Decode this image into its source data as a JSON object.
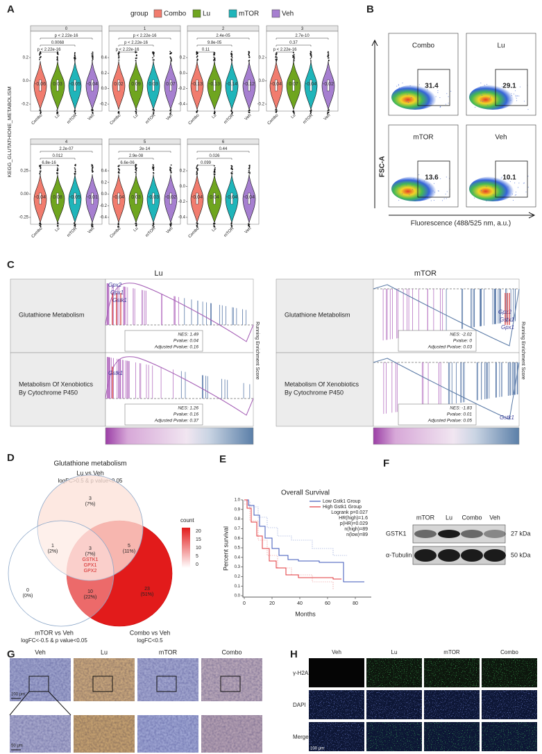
{
  "panels": {
    "A": {
      "label": "A",
      "legend_title": "group",
      "groups": [
        "Combo",
        "Lu",
        "mTOR",
        "Veh"
      ],
      "y_label": "KEGG_GLUTATHIONE_METABOLISM",
      "facets": [
        {
          "title": "0",
          "pvalues": [
            "p < 2.22e-16",
            "0.0068",
            "p < 2.22e-16"
          ],
          "medians": [
            "-0.06",
            "0.03",
            "-0.05",
            "-0.04"
          ],
          "yticks": [
            "0.2",
            "0.0",
            "-0.2"
          ]
        },
        {
          "title": "1",
          "pvalues": [
            "p < 2.22e-16",
            "p < 2.22e-16",
            "p < 2.22e-16"
          ],
          "medians": [
            "0.02",
            "0.09",
            "0.03",
            "0.07"
          ],
          "yticks": [
            "0.4",
            "0.2",
            "0.0",
            "-0.2"
          ]
        },
        {
          "title": "2",
          "pvalues": [
            "2.4e-05",
            "9.8e-05",
            "0.11"
          ],
          "medians": [
            "-0.13",
            "-0.13",
            "-0.14",
            "-0.12"
          ],
          "yticks": [
            "0.2",
            "0.0",
            "-0.2",
            "-0.4"
          ]
        },
        {
          "title": "3",
          "pvalues": [
            "2.7e-10",
            "0.37",
            "p < 2.22e-16"
          ],
          "medians": [
            "-0.04",
            "0.07",
            "-0.04",
            "-0.02"
          ],
          "yticks": [
            "0.2",
            "0.0",
            "-0.2"
          ]
        },
        {
          "title": "4",
          "pvalues": [
            "2.2e-07",
            "0.012",
            "6.8e-16"
          ],
          "medians": [
            "-0.04",
            "0.08",
            "-0.05",
            "-0.01"
          ],
          "yticks": [
            "0.25",
            "0.00",
            "-0.25"
          ]
        },
        {
          "title": "5",
          "pvalues": [
            "2e-14",
            "2.9e-08",
            "6.6e-06"
          ],
          "medians": [
            "-0.04",
            "0.03",
            "-0.03",
            "-0.02"
          ],
          "yticks": [
            "0.4",
            "0.2",
            "0.0",
            "-0.2",
            "-0.4"
          ]
        },
        {
          "title": "6",
          "pvalues": [
            "0.44",
            "0.026",
            "0.099"
          ],
          "medians": [
            "-0.04",
            "0.04",
            "-0.04",
            "-0.04"
          ],
          "yticks": [
            "0.2",
            "0.0",
            "-0.2",
            "-0.4"
          ]
        }
      ]
    },
    "B": {
      "label": "B",
      "samples": [
        {
          "name": "Combo",
          "value": "31.4"
        },
        {
          "name": "Lu",
          "value": "29.1"
        },
        {
          "name": "mTOR",
          "value": "13.6"
        },
        {
          "name": "Veh",
          "value": "10.1"
        }
      ],
      "y_label": "FSC-A",
      "x_label": "Fluorescence (488/525 nm, a.u.)"
    },
    "C": {
      "label": "C",
      "y_label": "Running Enrichment Score",
      "sides": [
        {
          "title": "Lu",
          "pathways": [
            {
              "name": [
                "Glutathione Metabolism"
              ],
              "genes": [
                "Gpx2",
                "Gpx1",
                "Gstk1"
              ],
              "stats": [
                "NES: 1.49",
                "Pvalue: 0.04",
                "Adjusted Pvalue: 0.16"
              ]
            },
            {
              "name": [
                "Metabolism Of Xenobiotics",
                "By Cytochrome   P450"
              ],
              "genes": [
                "Gstk1"
              ],
              "stats": [
                "NES: 1.26",
                "Pvalue: 0.16",
                "Adjusted Pvalue: 0.37"
              ]
            }
          ]
        },
        {
          "title": "mTOR",
          "pathways": [
            {
              "name": [
                "Glutathione Metabolism"
              ],
              "genes": [
                "Gpx2",
                "Gstk1",
                "Gpx1"
              ],
              "stats": [
                "NES: -2.02",
                "Pvalue: 0",
                "Adjusted Pvalue: 0.03"
              ]
            },
            {
              "name": [
                "Metabolism Of Xenobiotics",
                "By Cytochrome   P450"
              ],
              "genes": [
                "Gstk1"
              ],
              "stats": [
                "NES: -1.83",
                "Pvalue: 0.01",
                "Adjusted Pvalue: 0.05"
              ]
            }
          ]
        }
      ]
    },
    "D": {
      "label": "D",
      "title": "Glutathione metabolism",
      "sets": [
        {
          "name": "Lu vs Veh",
          "criteria": "logFC>0.5 & p value<0.05"
        },
        {
          "name": "mTOR vs Veh",
          "criteria": "logFC<-0.5 & p value<0.05"
        },
        {
          "name": "Combo vs Veh",
          "criteria": "logFC<0.5"
        }
      ],
      "regions": [
        {
          "count": "3",
          "pct": "(7%)"
        },
        {
          "count": "1",
          "pct": "(2%)"
        },
        {
          "count": "5",
          "pct": "(11%)"
        },
        {
          "count": "3",
          "pct": "(7%)",
          "genes": [
            "GSTK1",
            "GPX1",
            "GPX2"
          ]
        },
        {
          "count": "0",
          "pct": "(0%)"
        },
        {
          "count": "10",
          "pct": "(22%)"
        },
        {
          "count": "23",
          "pct": "(51%)"
        }
      ],
      "legend_title": "count",
      "legend_ticks": [
        "20",
        "15",
        "10",
        "5",
        "0"
      ]
    },
    "E": {
      "label": "E",
      "title": "Overall Survival",
      "legend": [
        "Low Gstk1 Group",
        "High Gstk1 Group"
      ],
      "stats": [
        "Logrank p=0.027",
        "HR(high)=1.6",
        "p(HR)=0.029",
        "n(high)=89",
        "n(low)=89"
      ],
      "y_label": "Percent survival",
      "x_label": "Months",
      "yticks": [
        "1.0",
        "0.9",
        "0.8",
        "0.7",
        "0.6",
        "0.5",
        "0.4",
        "0.3",
        "0.2",
        "0.1",
        "0.0"
      ],
      "xticks": [
        "0",
        "20",
        "40",
        "60",
        "80"
      ]
    },
    "F": {
      "label": "F",
      "columns": [
        "mTOR",
        "Lu",
        "Combo",
        "Veh"
      ],
      "rows": [
        {
          "name": "GSTK1",
          "size": "27 kDa"
        },
        {
          "name": "α-Tubulin",
          "size": "50 kDa"
        }
      ]
    },
    "G": {
      "label": "G",
      "columns": [
        "Veh",
        "Lu",
        "mTOR",
        "Combo"
      ],
      "scale_top": "100 μm",
      "scale_bottom": "50 μm"
    },
    "H": {
      "label": "H",
      "columns": [
        "Veh",
        "Lu",
        "mTOR",
        "Combo"
      ],
      "rows": [
        "γ-H2AX",
        "DAPI",
        "Merge"
      ],
      "scale": "100 μm"
    }
  }
}
